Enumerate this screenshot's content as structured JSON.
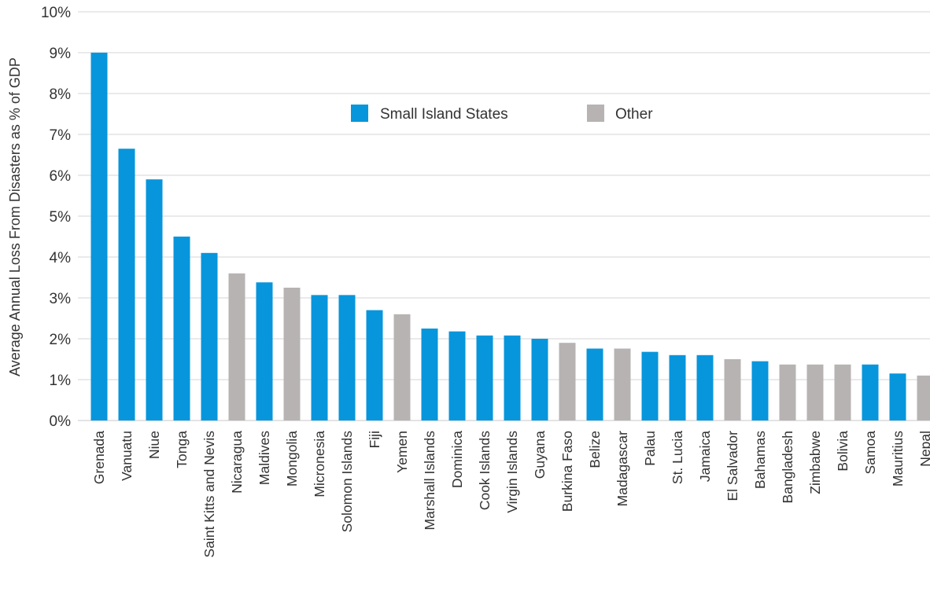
{
  "chart_data": {
    "type": "bar",
    "title": "",
    "xlabel": "",
    "ylabel": "Average Annual Loss From Disasters as % of GDP",
    "ylim": [
      0,
      10
    ],
    "yticks": [
      0,
      1,
      2,
      3,
      4,
      5,
      6,
      7,
      8,
      9,
      10
    ],
    "ytick_labels": [
      "0%",
      "1%",
      "2%",
      "3%",
      "4%",
      "5%",
      "6%",
      "7%",
      "8%",
      "9%",
      "10%"
    ],
    "grid": true,
    "legend": {
      "position": "top-center",
      "entries": [
        {
          "name": "Small Island States",
          "color": "#0796dc"
        },
        {
          "name": "Other",
          "color": "#b8b3b3"
        }
      ]
    },
    "categories": [
      "Grenada",
      "Vanuatu",
      "Niue",
      "Tonga",
      "Saint Kitts and Nevis",
      "Nicaragua",
      "Maldives",
      "Mongolia",
      "Micronesia",
      "Solomon Islands",
      "Fiji",
      "Yemen",
      "Marshall Islands",
      "Dominica",
      "Cook Islands",
      "Virgin Islands",
      "Guyana",
      "Burkina Faso",
      "Belize",
      "Madagascar",
      "Palau",
      "St. Lucia",
      "Jamaica",
      "El Salvador",
      "Bahamas",
      "Bangladesh",
      "Zimbabwe",
      "Bolivia",
      "Samoa",
      "Mauritius",
      "Nepal"
    ],
    "values": [
      9.0,
      6.65,
      5.9,
      4.5,
      4.1,
      3.6,
      3.38,
      3.25,
      3.07,
      3.07,
      2.7,
      2.6,
      2.25,
      2.18,
      2.08,
      2.08,
      2.0,
      1.9,
      1.76,
      1.76,
      1.68,
      1.6,
      1.6,
      1.5,
      1.45,
      1.37,
      1.37,
      1.37,
      1.37,
      1.15,
      1.1
    ],
    "groups": [
      "Small Island States",
      "Small Island States",
      "Small Island States",
      "Small Island States",
      "Small Island States",
      "Other",
      "Small Island States",
      "Other",
      "Small Island States",
      "Small Island States",
      "Small Island States",
      "Other",
      "Small Island States",
      "Small Island States",
      "Small Island States",
      "Small Island States",
      "Small Island States",
      "Other",
      "Small Island States",
      "Other",
      "Small Island States",
      "Small Island States",
      "Small Island States",
      "Other",
      "Small Island States",
      "Other",
      "Other",
      "Other",
      "Small Island States",
      "Small Island States",
      "Other"
    ]
  },
  "colors": {
    "grid": "#d6d6d6",
    "axis": "#c8c8c8",
    "text": "#333333"
  }
}
